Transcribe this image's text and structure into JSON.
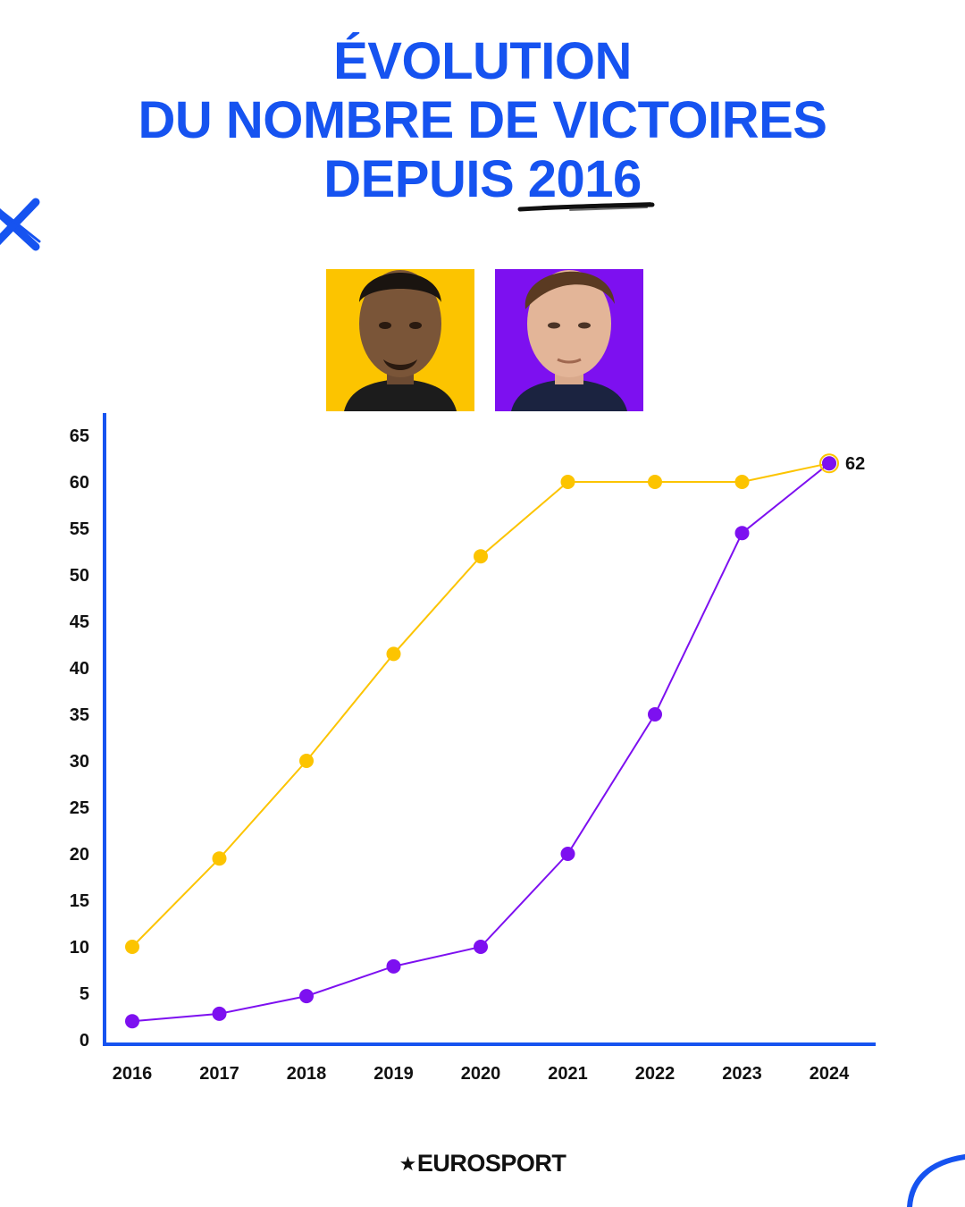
{
  "title": {
    "line1": "ÉVOLUTION",
    "line2": "DU NOMBRE DE VICTOIRES",
    "line3": "DEPUIS 2016"
  },
  "brand": {
    "logo_text": "EUROSPORT",
    "accent_blue": "#1653f0"
  },
  "portraits": [
    {
      "icon": "driver-portrait-yellow",
      "background": "#fcc400"
    },
    {
      "icon": "driver-portrait-purple",
      "background": "#7d10f0"
    }
  ],
  "chart_data": {
    "type": "line",
    "x": [
      "2016",
      "2017",
      "2018",
      "2019",
      "2020",
      "2021",
      "2022",
      "2023",
      "2024"
    ],
    "ylim": [
      0,
      65
    ],
    "yticks": [
      0,
      5,
      10,
      15,
      20,
      25,
      30,
      35,
      40,
      45,
      50,
      55,
      60,
      65
    ],
    "grid": false,
    "series": [
      {
        "color": "#fcc400",
        "values": [
          10,
          19.5,
          30,
          41.5,
          52,
          60,
          60,
          60,
          62
        ]
      },
      {
        "color": "#7d10f0",
        "values": [
          2,
          2.8,
          4.7,
          7.9,
          10,
          20,
          35,
          54.5,
          62
        ]
      }
    ],
    "end_label": "62"
  }
}
